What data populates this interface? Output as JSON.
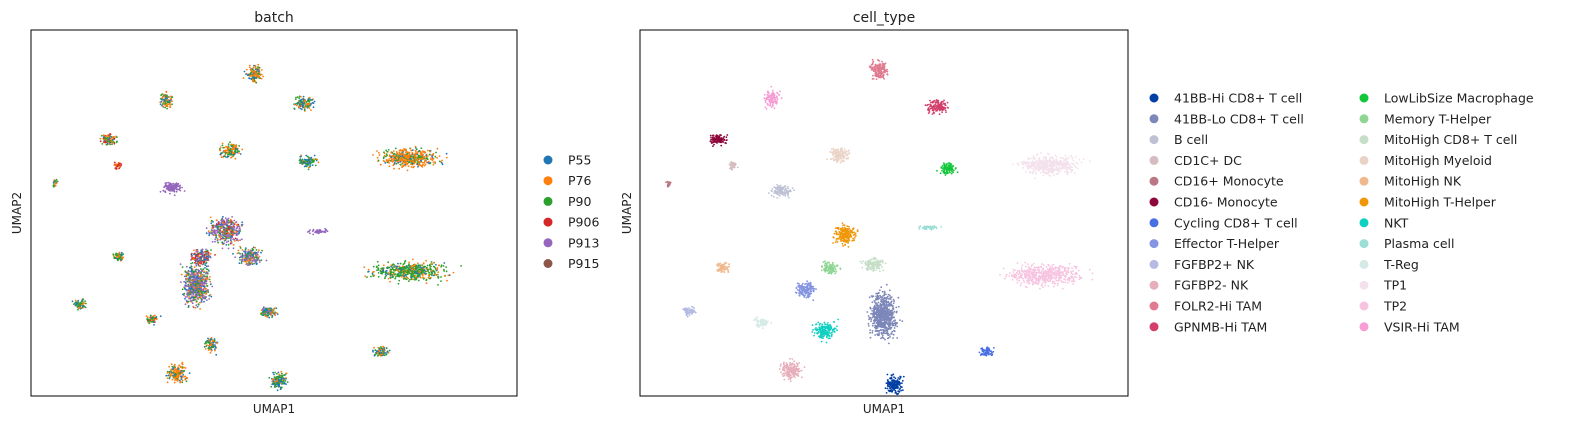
{
  "chart_data": [
    {
      "type": "scatter",
      "title": "batch",
      "xlabel": "UMAP1",
      "ylabel": "UMAP2",
      "grid": false,
      "legend_position": "right",
      "series": [
        {
          "name": "P55",
          "color": "#1f77b4"
        },
        {
          "name": "P76",
          "color": "#ff7f0e"
        },
        {
          "name": "P90",
          "color": "#2ca02c"
        },
        {
          "name": "P906",
          "color": "#d62728"
        },
        {
          "name": "P913",
          "color": "#9467bd"
        },
        {
          "name": "P915",
          "color": "#8c564b"
        }
      ],
      "clusters": [
        {
          "x": 0.46,
          "y": 0.88,
          "mix": [
            2,
            4,
            1,
            0,
            0,
            0
          ]
        },
        {
          "x": 0.28,
          "y": 0.81,
          "mix": [
            1,
            2,
            1,
            0,
            0,
            0
          ]
        },
        {
          "x": 0.56,
          "y": 0.8,
          "mix": [
            2,
            2,
            2,
            0,
            0,
            0
          ]
        },
        {
          "x": 0.16,
          "y": 0.7,
          "mix": [
            1,
            2,
            2,
            1,
            0,
            0
          ]
        },
        {
          "x": 0.41,
          "y": 0.67,
          "mix": [
            1,
            3,
            2,
            0,
            0,
            0
          ]
        },
        {
          "x": 0.18,
          "y": 0.63,
          "mix": [
            0,
            1,
            0,
            2,
            0,
            0
          ]
        },
        {
          "x": 0.57,
          "y": 0.64,
          "mix": [
            2,
            1,
            2,
            0,
            0,
            0
          ]
        },
        {
          "x": 0.05,
          "y": 0.58,
          "mix": [
            1,
            1,
            2,
            0,
            0,
            0
          ]
        },
        {
          "x": 0.29,
          "y": 0.57,
          "mix": [
            0,
            0,
            0,
            0,
            5,
            0
          ]
        },
        {
          "x": 0.78,
          "y": 0.65,
          "mix": [
            1,
            5,
            2,
            0,
            0,
            0
          ]
        },
        {
          "x": 0.59,
          "y": 0.45,
          "mix": [
            0,
            0,
            0,
            0,
            5,
            0
          ]
        },
        {
          "x": 0.4,
          "y": 0.45,
          "mix": [
            1,
            1,
            1,
            1,
            4,
            0
          ]
        },
        {
          "x": 0.45,
          "y": 0.38,
          "mix": [
            1,
            1,
            1,
            0,
            3,
            0
          ]
        },
        {
          "x": 0.35,
          "y": 0.38,
          "mix": [
            1,
            1,
            1,
            2,
            2,
            0
          ]
        },
        {
          "x": 0.18,
          "y": 0.38,
          "mix": [
            1,
            1,
            2,
            0,
            0,
            0
          ]
        },
        {
          "x": 0.78,
          "y": 0.34,
          "mix": [
            1,
            2,
            5,
            0,
            0,
            0
          ]
        },
        {
          "x": 0.34,
          "y": 0.3,
          "mix": [
            1,
            1,
            1,
            0,
            2,
            0
          ]
        },
        {
          "x": 0.1,
          "y": 0.25,
          "mix": [
            1,
            1,
            2,
            0,
            0,
            0
          ]
        },
        {
          "x": 0.25,
          "y": 0.21,
          "mix": [
            1,
            2,
            2,
            1,
            0,
            0
          ]
        },
        {
          "x": 0.49,
          "y": 0.23,
          "mix": [
            3,
            1,
            2,
            0,
            1,
            0
          ]
        },
        {
          "x": 0.37,
          "y": 0.14,
          "mix": [
            2,
            2,
            1,
            0,
            0,
            0
          ]
        },
        {
          "x": 0.72,
          "y": 0.12,
          "mix": [
            1,
            1,
            1,
            0,
            0,
            0
          ]
        },
        {
          "x": 0.3,
          "y": 0.06,
          "mix": [
            1,
            3,
            1,
            0,
            0,
            0
          ]
        },
        {
          "x": 0.51,
          "y": 0.04,
          "mix": [
            2,
            1,
            2,
            0,
            0,
            0
          ]
        }
      ]
    },
    {
      "type": "scatter",
      "title": "cell_type",
      "xlabel": "UMAP1",
      "ylabel": "UMAP2",
      "grid": false,
      "legend_position": "right",
      "series": [
        {
          "name": "41BB-Hi CD8+ T cell",
          "color": "#023fa5"
        },
        {
          "name": "41BB-Lo CD8+ T cell",
          "color": "#7d87b9"
        },
        {
          "name": "B cell",
          "color": "#bec1d4"
        },
        {
          "name": "CD1C+ DC",
          "color": "#d6bcc0"
        },
        {
          "name": "CD16+ Monocyte",
          "color": "#bb7784"
        },
        {
          "name": "CD16- Monocyte",
          "color": "#8e063b"
        },
        {
          "name": "Cycling CD8+ T cell",
          "color": "#4a6fe3"
        },
        {
          "name": "Effector T-Helper",
          "color": "#8595e1"
        },
        {
          "name": "FGFBP2+ NK",
          "color": "#b5bbe3"
        },
        {
          "name": "FGFBP2- NK",
          "color": "#e6afb9"
        },
        {
          "name": "FOLR2-Hi TAM",
          "color": "#e07b91"
        },
        {
          "name": "GPNMB-Hi TAM",
          "color": "#d33f6a"
        },
        {
          "name": "LowLibSize Macrophage",
          "color": "#11c638"
        },
        {
          "name": "Memory T-Helper",
          "color": "#8dd593"
        },
        {
          "name": "MitoHigh CD8+ T cell",
          "color": "#c6dec7"
        },
        {
          "name": "MitoHigh Myeloid",
          "color": "#ead3c6"
        },
        {
          "name": "MitoHigh NK",
          "color": "#f0b98d"
        },
        {
          "name": "MitoHigh T-Helper",
          "color": "#ef9708"
        },
        {
          "name": "NKT",
          "color": "#0fcfc0"
        },
        {
          "name": "Plasma cell",
          "color": "#9cded6"
        },
        {
          "name": "T-Reg",
          "color": "#d5eae7"
        },
        {
          "name": "TP1",
          "color": "#f3e1eb"
        },
        {
          "name": "TP2",
          "color": "#f6c4e1"
        },
        {
          "name": "VSIR-Hi TAM",
          "color": "#f79cd4"
        }
      ],
      "clusters": [
        {
          "x": 0.49,
          "y": 0.89,
          "type": "FOLR2-Hi TAM"
        },
        {
          "x": 0.27,
          "y": 0.81,
          "type": "VSIR-Hi TAM"
        },
        {
          "x": 0.61,
          "y": 0.79,
          "type": "GPNMB-Hi TAM"
        },
        {
          "x": 0.16,
          "y": 0.7,
          "type": "CD16- Monocyte"
        },
        {
          "x": 0.41,
          "y": 0.66,
          "type": "MitoHigh Myeloid"
        },
        {
          "x": 0.19,
          "y": 0.63,
          "type": "CD1C+ DC"
        },
        {
          "x": 0.63,
          "y": 0.62,
          "type": "LowLibSize Macrophage"
        },
        {
          "x": 0.06,
          "y": 0.58,
          "type": "CD16+ Monocyte"
        },
        {
          "x": 0.29,
          "y": 0.56,
          "type": "B cell"
        },
        {
          "x": 0.84,
          "y": 0.63,
          "type": "TP1"
        },
        {
          "x": 0.59,
          "y": 0.46,
          "type": "Plasma cell"
        },
        {
          "x": 0.42,
          "y": 0.44,
          "type": "MitoHigh T-Helper"
        },
        {
          "x": 0.48,
          "y": 0.36,
          "type": "MitoHigh CD8+ T cell"
        },
        {
          "x": 0.39,
          "y": 0.35,
          "type": "Memory T-Helper"
        },
        {
          "x": 0.17,
          "y": 0.35,
          "type": "MitoHigh NK"
        },
        {
          "x": 0.83,
          "y": 0.33,
          "type": "TP2"
        },
        {
          "x": 0.34,
          "y": 0.29,
          "type": "Effector T-Helper"
        },
        {
          "x": 0.1,
          "y": 0.23,
          "type": "FGFBP2+ NK"
        },
        {
          "x": 0.25,
          "y": 0.2,
          "type": "T-Reg"
        },
        {
          "x": 0.5,
          "y": 0.22,
          "type": "41BB-Lo CD8+ T cell"
        },
        {
          "x": 0.38,
          "y": 0.18,
          "type": "NKT"
        },
        {
          "x": 0.71,
          "y": 0.12,
          "type": "Cycling CD8+ T cell"
        },
        {
          "x": 0.31,
          "y": 0.07,
          "type": "FGFBP2- NK"
        },
        {
          "x": 0.52,
          "y": 0.03,
          "type": "41BB-Hi CD8+ T cell"
        }
      ]
    }
  ]
}
